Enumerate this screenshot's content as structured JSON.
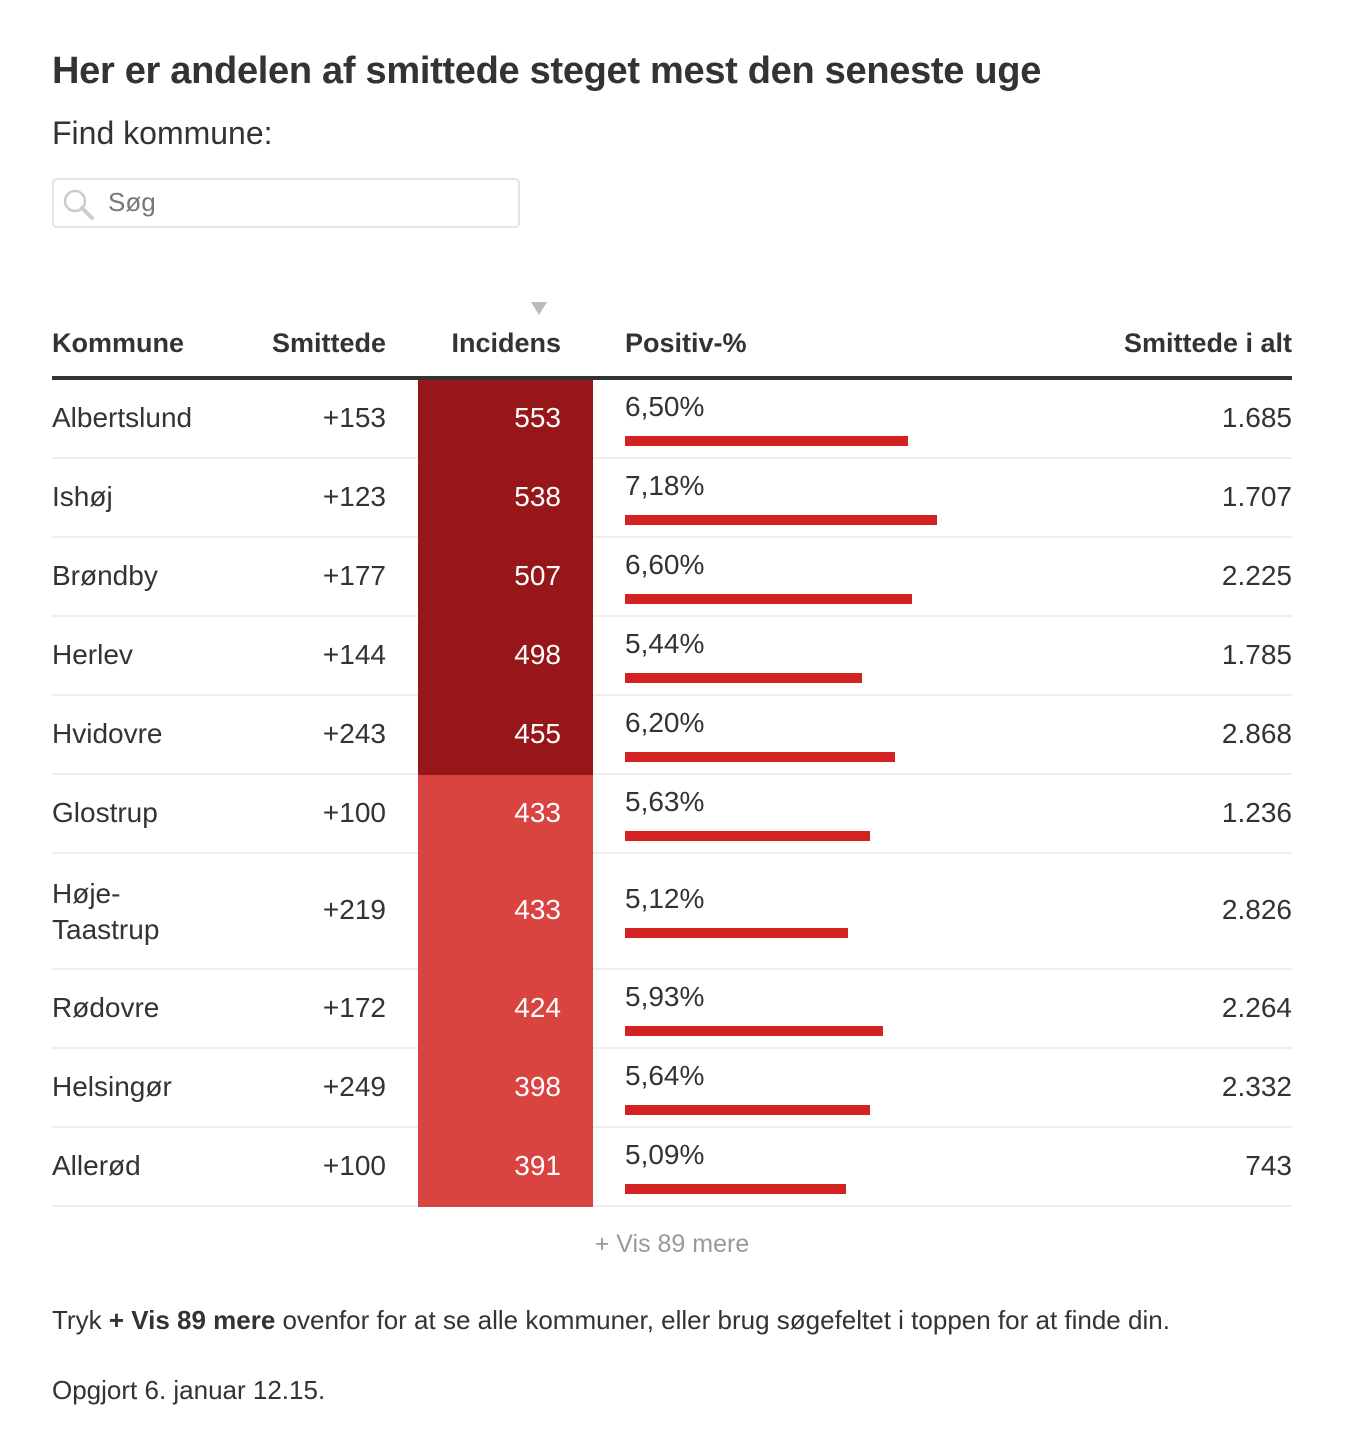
{
  "title": "Her er andelen af smittede steget mest den seneste uge",
  "find_label": "Find kommune:",
  "search": {
    "placeholder": "Søg",
    "value": ""
  },
  "colors": {
    "incidens_high": "#96161a",
    "incidens_mid": "#d94440",
    "bar": "#d32222"
  },
  "chart_data": {
    "type": "table",
    "sorted_by": "Incidens",
    "sort_direction": "descending",
    "columns": [
      "Kommune",
      "Smittede",
      "Incidens",
      "Positiv-%",
      "Smittede i alt"
    ],
    "rows": [
      {
        "kommune": "Albertslund",
        "smittede": "+153",
        "incidens": "553",
        "positiv": "6,50%",
        "positiv_value": 6.5,
        "alt": "1.685",
        "tier": "high"
      },
      {
        "kommune": "Ishøj",
        "smittede": "+123",
        "incidens": "538",
        "positiv": "7,18%",
        "positiv_value": 7.18,
        "alt": "1.707",
        "tier": "high"
      },
      {
        "kommune": "Brøndby",
        "smittede": "+177",
        "incidens": "507",
        "positiv": "6,60%",
        "positiv_value": 6.6,
        "alt": "2.225",
        "tier": "high"
      },
      {
        "kommune": "Herlev",
        "smittede": "+144",
        "incidens": "498",
        "positiv": "5,44%",
        "positiv_value": 5.44,
        "alt": "1.785",
        "tier": "high"
      },
      {
        "kommune": "Hvidovre",
        "smittede": "+243",
        "incidens": "455",
        "positiv": "6,20%",
        "positiv_value": 6.2,
        "alt": "2.868",
        "tier": "high"
      },
      {
        "kommune": "Glostrup",
        "smittede": "+100",
        "incidens": "433",
        "positiv": "5,63%",
        "positiv_value": 5.63,
        "alt": "1.236",
        "tier": "mid"
      },
      {
        "kommune": "Høje-Taastrup",
        "smittede": "+219",
        "incidens": "433",
        "positiv": "5,12%",
        "positiv_value": 5.12,
        "alt": "2.826",
        "tier": "mid"
      },
      {
        "kommune": "Rødovre",
        "smittede": "+172",
        "incidens": "424",
        "positiv": "5,93%",
        "positiv_value": 5.93,
        "alt": "2.264",
        "tier": "mid"
      },
      {
        "kommune": "Helsingør",
        "smittede": "+249",
        "incidens": "398",
        "positiv": "5,64%",
        "positiv_value": 5.64,
        "alt": "2.332",
        "tier": "mid"
      },
      {
        "kommune": "Allerød",
        "smittede": "+100",
        "incidens": "391",
        "positiv": "5,09%",
        "positiv_value": 5.09,
        "alt": "743",
        "tier": "mid"
      }
    ]
  },
  "show_more": "+ Vis 89 mere",
  "note": {
    "pre": "Tryk ",
    "bold": "+ Vis 89 mere",
    "post": " ovenfor for at se alle kommuner, eller brug søgefeltet i toppen for at finde din."
  },
  "updated": "Opgjort 6. januar 12.15."
}
